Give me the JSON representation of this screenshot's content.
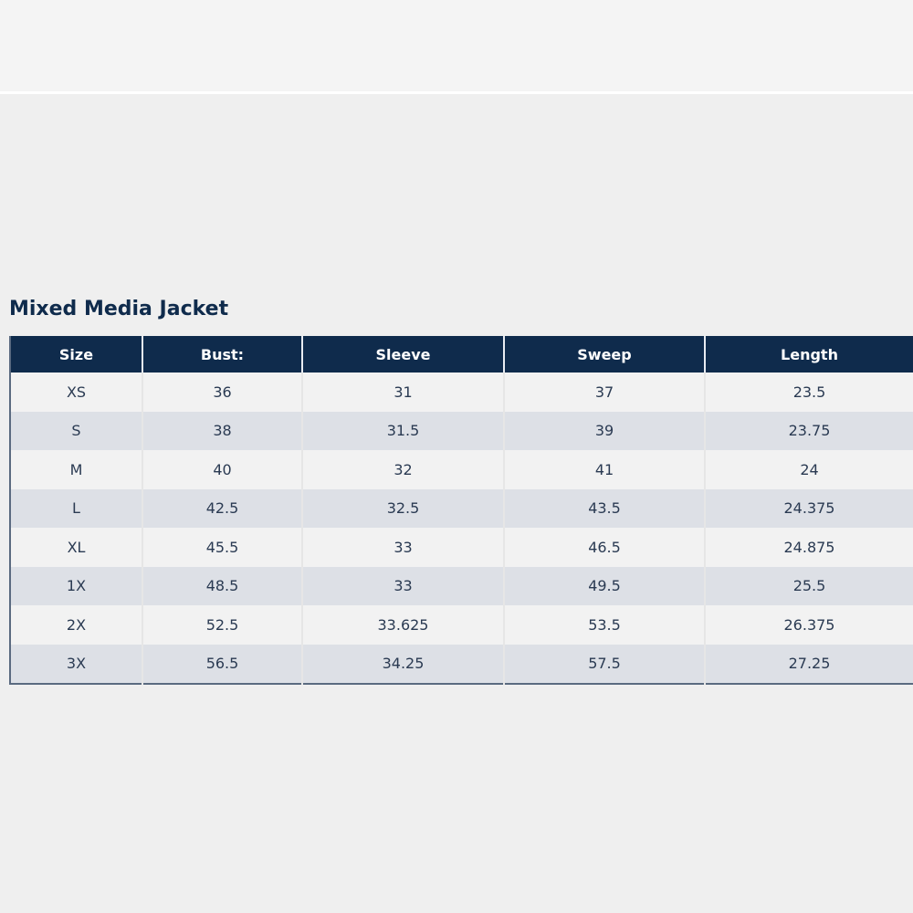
{
  "title": "Mixed Media Jacket",
  "table": {
    "header": [
      "Size",
      "Bust:",
      "Sleeve",
      "Sweep",
      "Length"
    ],
    "rows": [
      [
        "XS",
        "36",
        "31",
        "37",
        "23.5"
      ],
      [
        "S",
        "38",
        "31.5",
        "39",
        "23.75"
      ],
      [
        "M",
        "40",
        "32",
        "41",
        "24"
      ],
      [
        "L",
        "42.5",
        "32.5",
        "43.5",
        "24.375"
      ],
      [
        "XL",
        "45.5",
        "33",
        "46.5",
        "24.875"
      ],
      [
        "1X",
        "48.5",
        "33",
        "49.5",
        "25.5"
      ],
      [
        "2X",
        "52.5",
        "33.625",
        "53.5",
        "26.375"
      ],
      [
        "3X",
        "56.5",
        "34.25",
        "57.5",
        "27.25"
      ]
    ]
  }
}
